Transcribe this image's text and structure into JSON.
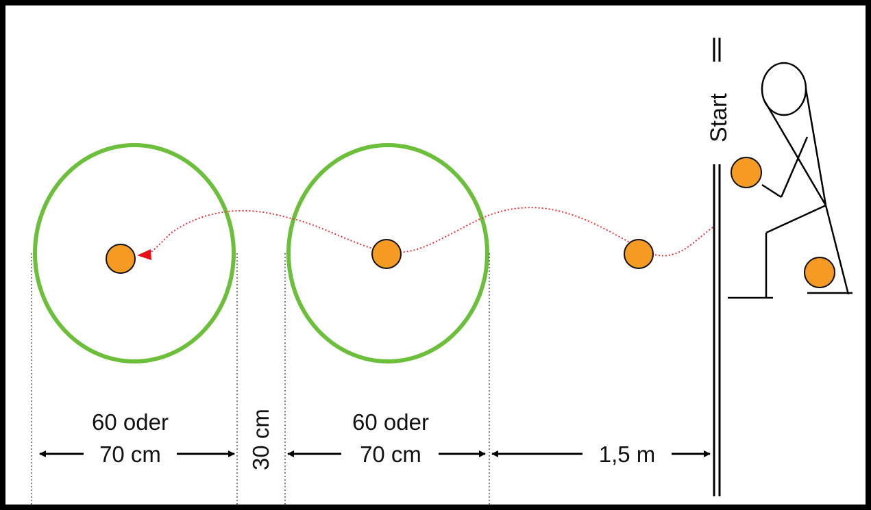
{
  "labels": {
    "start": "Start",
    "circle1_top": "60 oder",
    "circle1_bottom": "70 cm",
    "gap": "30 cm",
    "circle2_top": "60 oder",
    "circle2_bottom": "70 cm",
    "run_up": "1,5 m"
  },
  "colors": {
    "hoop": "#6cbf3a",
    "ball": "#f59a23",
    "ball_outline": "#111111",
    "path": "#e8303a",
    "arrowhead": "#e8101a",
    "frame": "#000000"
  },
  "icons": {
    "arrow": "double-headed-arrow",
    "person": "stick-figure-person"
  }
}
